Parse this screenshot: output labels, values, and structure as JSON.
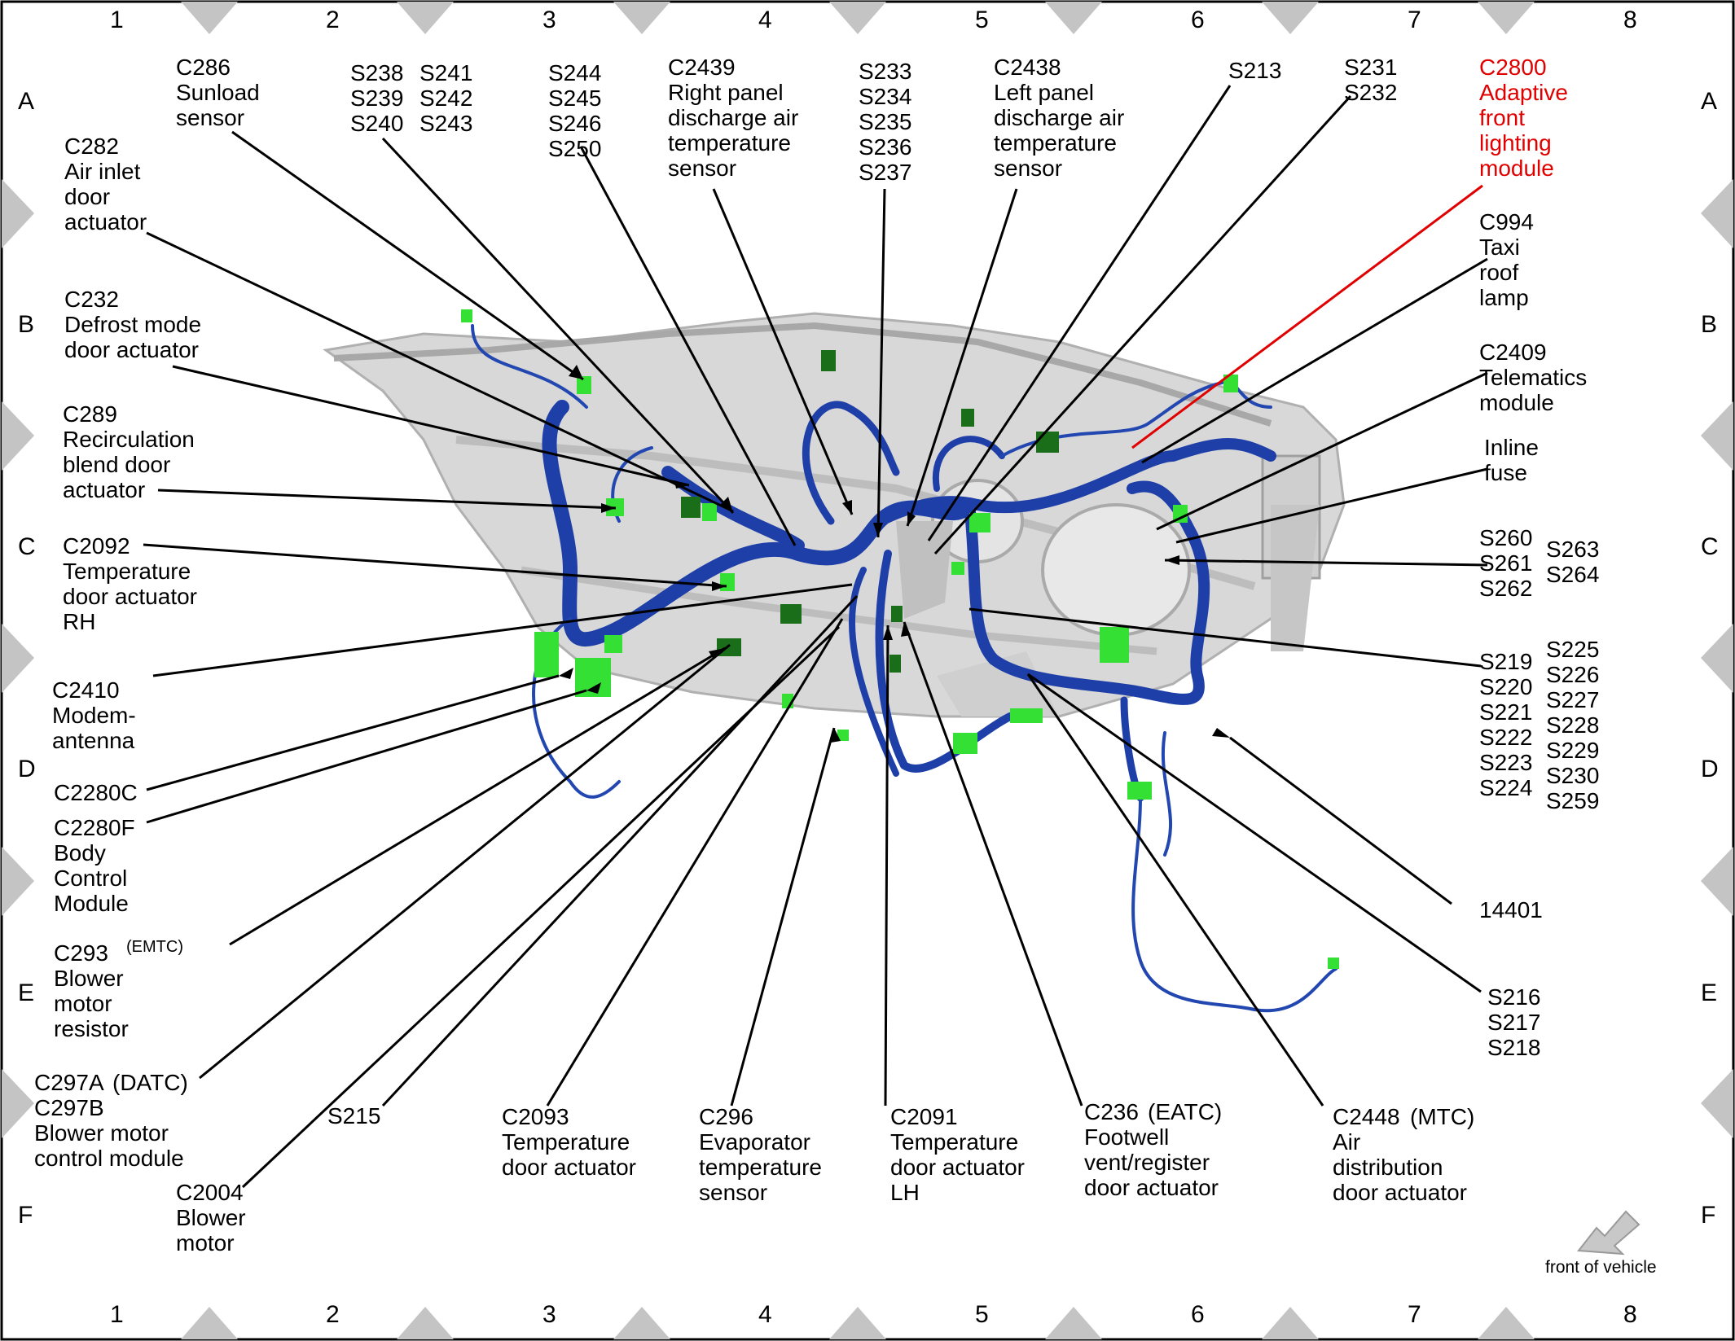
{
  "grid": {
    "columns": [
      "1",
      "2",
      "3",
      "4",
      "5",
      "6",
      "7",
      "8"
    ],
    "rows": [
      "A",
      "B",
      "C",
      "D",
      "E",
      "F"
    ]
  },
  "labels": [
    {
      "id": "c286",
      "text": "C286\nSunload\nsensor"
    },
    {
      "id": "s238",
      "text": "S238\nS239\nS240"
    },
    {
      "id": "s241",
      "text": "S241\nS242\nS243"
    },
    {
      "id": "s244",
      "text": "S244\nS245\nS246\nS250"
    },
    {
      "id": "c2439",
      "text": "C2439\nRight panel\ndischarge air\ntemperature\nsensor"
    },
    {
      "id": "s233",
      "text": "S233\nS234\nS235\nS236\nS237"
    },
    {
      "id": "c2438",
      "text": "C2438\nLeft panel\ndischarge air\ntemperature\nsensor"
    },
    {
      "id": "s213",
      "text": "S213"
    },
    {
      "id": "s231",
      "text": "S231\nS232"
    },
    {
      "id": "c2800",
      "text": "C2800\nAdaptive\nfront\nlighting\nmodule"
    },
    {
      "id": "c282",
      "text": "C282\nAir inlet\ndoor\nactuator"
    },
    {
      "id": "c994",
      "text": "C994\nTaxi\nroof\nlamp"
    },
    {
      "id": "c232",
      "text": "C232\nDefrost mode\ndoor actuator"
    },
    {
      "id": "c2409",
      "text": "C2409\nTelematics\nmodule"
    },
    {
      "id": "c289",
      "text": "C289\nRecirculation\nblend door\nactuator"
    },
    {
      "id": "inline_fuse",
      "text": "Inline\nfuse"
    },
    {
      "id": "c2092",
      "text": "C2092\nTemperature\ndoor actuator\nRH"
    },
    {
      "id": "s260",
      "text": "S260\nS261\nS262"
    },
    {
      "id": "s263",
      "text": "S263\nS264"
    },
    {
      "id": "c2410",
      "text": "C2410\nModem-\nantenna"
    },
    {
      "id": "s219",
      "text": "S219\nS220\nS221\nS222\nS223\nS224"
    },
    {
      "id": "s225",
      "text": "S225\nS226\nS227\nS228\nS229\nS230\nS259"
    },
    {
      "id": "c2280c",
      "text": "C2280C"
    },
    {
      "id": "c2280f",
      "text": "C2280F\nBody\nControl\nModule"
    },
    {
      "id": "c293",
      "text": "C293\nBlower\nmotor\nresistor"
    },
    {
      "id": "n14401",
      "text": "14401"
    },
    {
      "id": "s216",
      "text": "S216\nS217\nS218"
    },
    {
      "id": "c297",
      "text": "C297A\nC297B\nBlower motor\ncontrol module"
    },
    {
      "id": "s215",
      "text": "S215"
    },
    {
      "id": "c2093",
      "text": "C2093\nTemperature\ndoor actuator"
    },
    {
      "id": "c296",
      "text": "C296\nEvaporator\ntemperature\nsensor"
    },
    {
      "id": "c2091",
      "text": "C2091\nTemperature\ndoor actuator\nLH"
    },
    {
      "id": "c236",
      "text": "C236\nFootwell\nvent/register\ndoor actuator"
    },
    {
      "id": "c2448",
      "text": "C2448\nAir\ndistribution\ndoor actuator"
    },
    {
      "id": "c2004",
      "text": "C2004\nBlower\nmotor"
    }
  ],
  "qualifiers": {
    "emtc": "(EMTC)",
    "datc": "(DATC)",
    "eatc": "(EATC)",
    "mtc": "(MTC)"
  },
  "front_of_vehicle": "front of vehicle",
  "colors": {
    "harness": "#1f3fa8",
    "connector": "#33e033",
    "connector_dark": "#1a6e1a",
    "panel": "#c9c9c9",
    "border_triangle": "#c4c4c4",
    "highlight": "#e00000"
  }
}
